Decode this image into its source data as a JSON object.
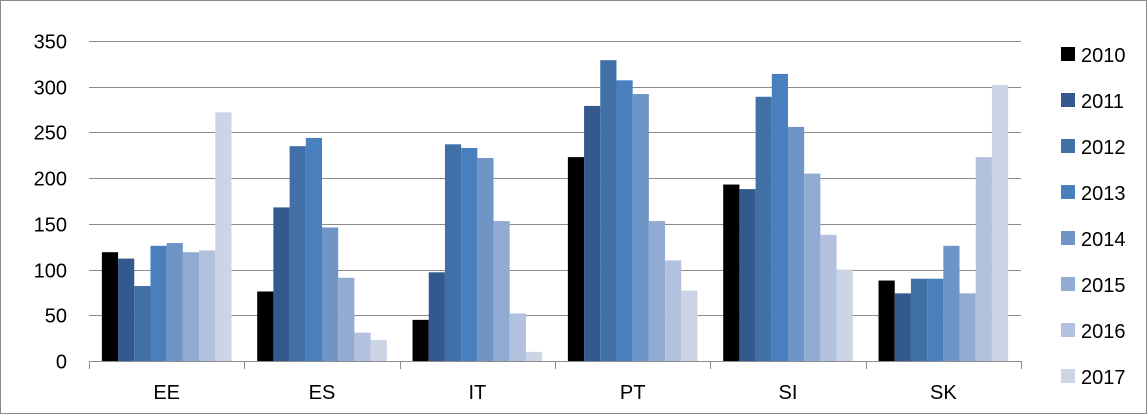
{
  "chart_data": {
    "type": "bar",
    "title": "",
    "xlabel": "",
    "ylabel": "",
    "ylim": [
      0,
      350
    ],
    "yticks": [
      0,
      50,
      100,
      150,
      200,
      250,
      300,
      350
    ],
    "grid": "horizontal",
    "legend_position": "right",
    "categories": [
      "EE",
      "ES",
      "IT",
      "PT",
      "SI",
      "SK"
    ],
    "series": [
      {
        "name": "2010",
        "color": "#000000",
        "values": [
          119,
          76,
          45,
          223,
          193,
          88
        ]
      },
      {
        "name": "2011",
        "color": "#34598e",
        "values": [
          112,
          168,
          97,
          279,
          188,
          74
        ]
      },
      {
        "name": "2012",
        "color": "#4170a7",
        "values": [
          82,
          235,
          237,
          329,
          289,
          90
        ]
      },
      {
        "name": "2013",
        "color": "#4a7fbe",
        "values": [
          126,
          244,
          233,
          307,
          314,
          90
        ]
      },
      {
        "name": "2014",
        "color": "#6f94c6",
        "values": [
          129,
          146,
          222,
          292,
          256,
          126
        ]
      },
      {
        "name": "2015",
        "color": "#92abd2",
        "values": [
          119,
          91,
          153,
          153,
          205,
          74
        ]
      },
      {
        "name": "2016",
        "color": "#b2c2de",
        "values": [
          121,
          31,
          52,
          110,
          138,
          223
        ]
      },
      {
        "name": "2017",
        "color": "#cdd4e6",
        "values": [
          272,
          23,
          10,
          77,
          100,
          302
        ]
      }
    ]
  }
}
